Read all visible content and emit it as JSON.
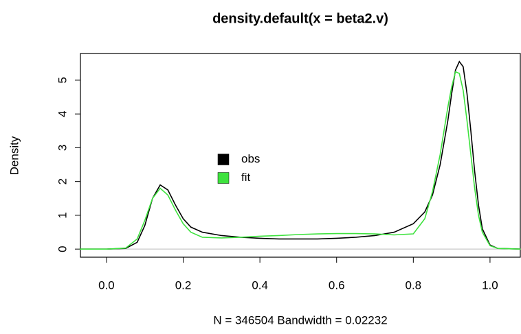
{
  "chart_data": {
    "type": "line",
    "title": "density.default(x = beta2.v)",
    "xlabel": "N = 346504   Bandwidth = 0.02232",
    "ylabel": "Density",
    "x": [
      -0.07,
      0.0,
      0.05,
      0.08,
      0.1,
      0.12,
      0.14,
      0.16,
      0.18,
      0.2,
      0.22,
      0.25,
      0.3,
      0.35,
      0.4,
      0.45,
      0.5,
      0.55,
      0.6,
      0.65,
      0.7,
      0.75,
      0.8,
      0.83,
      0.85,
      0.87,
      0.89,
      0.9,
      0.91,
      0.92,
      0.93,
      0.94,
      0.95,
      0.96,
      0.97,
      0.98,
      1.0,
      1.02,
      1.08
    ],
    "series": [
      {
        "name": "obs",
        "color": "#000000",
        "values": [
          0,
          0,
          0.02,
          0.2,
          0.7,
          1.5,
          1.9,
          1.75,
          1.3,
          0.9,
          0.65,
          0.5,
          0.4,
          0.35,
          0.32,
          0.3,
          0.3,
          0.3,
          0.32,
          0.35,
          0.4,
          0.5,
          0.75,
          1.1,
          1.6,
          2.5,
          3.8,
          4.6,
          5.3,
          5.55,
          5.4,
          4.6,
          3.5,
          2.3,
          1.3,
          0.6,
          0.12,
          0.02,
          0
        ]
      },
      {
        "name": "fit",
        "color": "#3ee23e",
        "values": [
          0,
          0,
          0.03,
          0.3,
          0.85,
          1.5,
          1.8,
          1.6,
          1.15,
          0.75,
          0.5,
          0.35,
          0.33,
          0.35,
          0.38,
          0.4,
          0.43,
          0.45,
          0.46,
          0.46,
          0.45,
          0.42,
          0.45,
          0.9,
          1.7,
          2.8,
          4.2,
          4.8,
          5.25,
          5.2,
          4.7,
          3.8,
          2.8,
          1.8,
          1.0,
          0.5,
          0.1,
          0.02,
          0
        ]
      }
    ],
    "xlim": [
      -0.068,
      1.079
    ],
    "ylim": [
      -0.24,
      5.79
    ],
    "xticks": [
      {
        "value": 0,
        "label": "0.0"
      },
      {
        "value": 0.2,
        "label": "0.2"
      },
      {
        "value": 0.4,
        "label": "0.4"
      },
      {
        "value": 0.6,
        "label": "0.6"
      },
      {
        "value": 0.8,
        "label": "0.8"
      },
      {
        "value": 1,
        "label": "1.0"
      }
    ],
    "yticks": [
      0,
      1,
      2,
      3,
      4,
      5
    ],
    "legend": "center"
  }
}
